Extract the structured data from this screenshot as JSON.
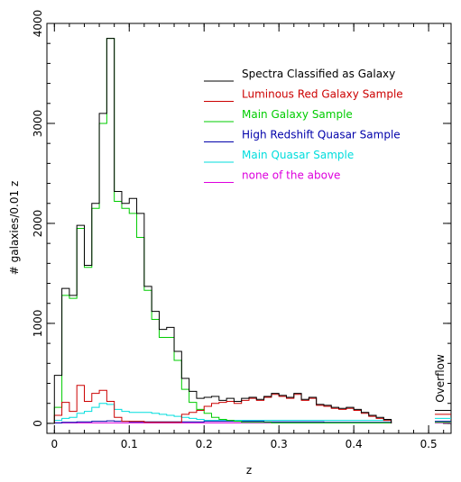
{
  "chart_data": {
    "type": "histogram",
    "xlabel": "z",
    "ylabel": "# galaxies/0.01 z",
    "xlim": [
      -0.01,
      0.53
    ],
    "ylim": [
      -100,
      4000
    ],
    "x_ticks": [
      0,
      0.1,
      0.2,
      0.3,
      0.4,
      0.5
    ],
    "x_tick_labels": [
      "0",
      "0.1",
      "0.2",
      "0.3",
      "0.4",
      "0.5"
    ],
    "y_ticks": [
      0,
      1000,
      2000,
      3000,
      4000
    ],
    "y_tick_labels": [
      "0",
      "1000",
      "2000",
      "3000",
      "4000"
    ],
    "bin_width": 0.01,
    "bin_start": 0.0,
    "overflow_label": "Overflow",
    "legend_position": "top-right",
    "series": [
      {
        "name": "Spectra Classified as Galaxy",
        "color": "#000000",
        "values": [
          480,
          1350,
          1280,
          1980,
          1580,
          2200,
          3100,
          3850,
          2320,
          2200,
          2250,
          2100,
          1370,
          1120,
          940,
          960,
          720,
          450,
          320,
          250,
          260,
          270,
          230,
          250,
          220,
          250,
          260,
          240,
          270,
          300,
          280,
          260,
          300,
          240,
          260,
          190,
          180,
          160,
          150,
          160,
          140,
          110,
          80,
          60,
          40
        ],
        "overflow": 130
      },
      {
        "name": "Luminous Red Galaxy Sample",
        "color": "#cc0000",
        "values": [
          80,
          210,
          120,
          380,
          220,
          300,
          330,
          220,
          60,
          20,
          20,
          20,
          10,
          10,
          10,
          10,
          10,
          90,
          110,
          130,
          170,
          200,
          210,
          220,
          200,
          230,
          250,
          230,
          260,
          290,
          270,
          250,
          290,
          230,
          250,
          180,
          170,
          150,
          140,
          150,
          130,
          100,
          70,
          50,
          30
        ],
        "overflow": 90
      },
      {
        "name": "Main Galaxy Sample",
        "color": "#00cc00",
        "values": [
          160,
          1280,
          1250,
          1950,
          1560,
          2150,
          3000,
          3850,
          2220,
          2150,
          2100,
          1860,
          1330,
          1040,
          860,
          860,
          630,
          340,
          210,
          140,
          100,
          60,
          40,
          30,
          20,
          10,
          10,
          10,
          10,
          5,
          5,
          5,
          5,
          5,
          5,
          5,
          5,
          5,
          5,
          5,
          5,
          5,
          5,
          5,
          5
        ],
        "overflow": 10
      },
      {
        "name": "High Redshift Quasar Sample",
        "color": "#0000aa",
        "values": [
          5,
          10,
          10,
          15,
          15,
          20,
          20,
          25,
          20,
          20,
          15,
          15,
          15,
          15,
          15,
          15,
          15,
          15,
          15,
          15,
          20,
          20,
          20,
          20,
          20,
          20,
          20,
          20,
          15,
          15,
          15,
          15,
          15,
          15,
          15,
          15,
          10,
          10,
          10,
          10,
          10,
          10,
          10,
          10,
          10
        ],
        "overflow": 20
      },
      {
        "name": "Main Quasar Sample",
        "color": "#00dddd",
        "values": [
          30,
          50,
          60,
          100,
          120,
          160,
          200,
          190,
          140,
          120,
          110,
          110,
          110,
          100,
          90,
          80,
          70,
          60,
          50,
          40,
          30,
          30,
          30,
          30,
          30,
          30,
          30,
          30,
          30,
          30,
          30,
          30,
          30,
          30,
          30,
          30,
          30,
          30,
          30,
          30,
          30,
          30,
          30,
          30,
          30
        ],
        "overflow": 50
      },
      {
        "name": "none of the above",
        "color": "#dd00dd",
        "values": [
          5,
          5,
          5,
          5,
          5,
          5,
          5,
          5,
          5,
          5,
          5,
          5,
          5,
          5,
          5,
          5,
          5,
          5,
          5,
          5,
          5,
          5,
          5,
          5,
          5,
          5,
          5,
          5,
          5,
          5,
          5,
          5,
          5,
          5,
          5,
          5,
          5,
          5,
          5,
          5,
          5,
          5,
          5,
          5,
          5
        ],
        "overflow": 5
      }
    ]
  }
}
